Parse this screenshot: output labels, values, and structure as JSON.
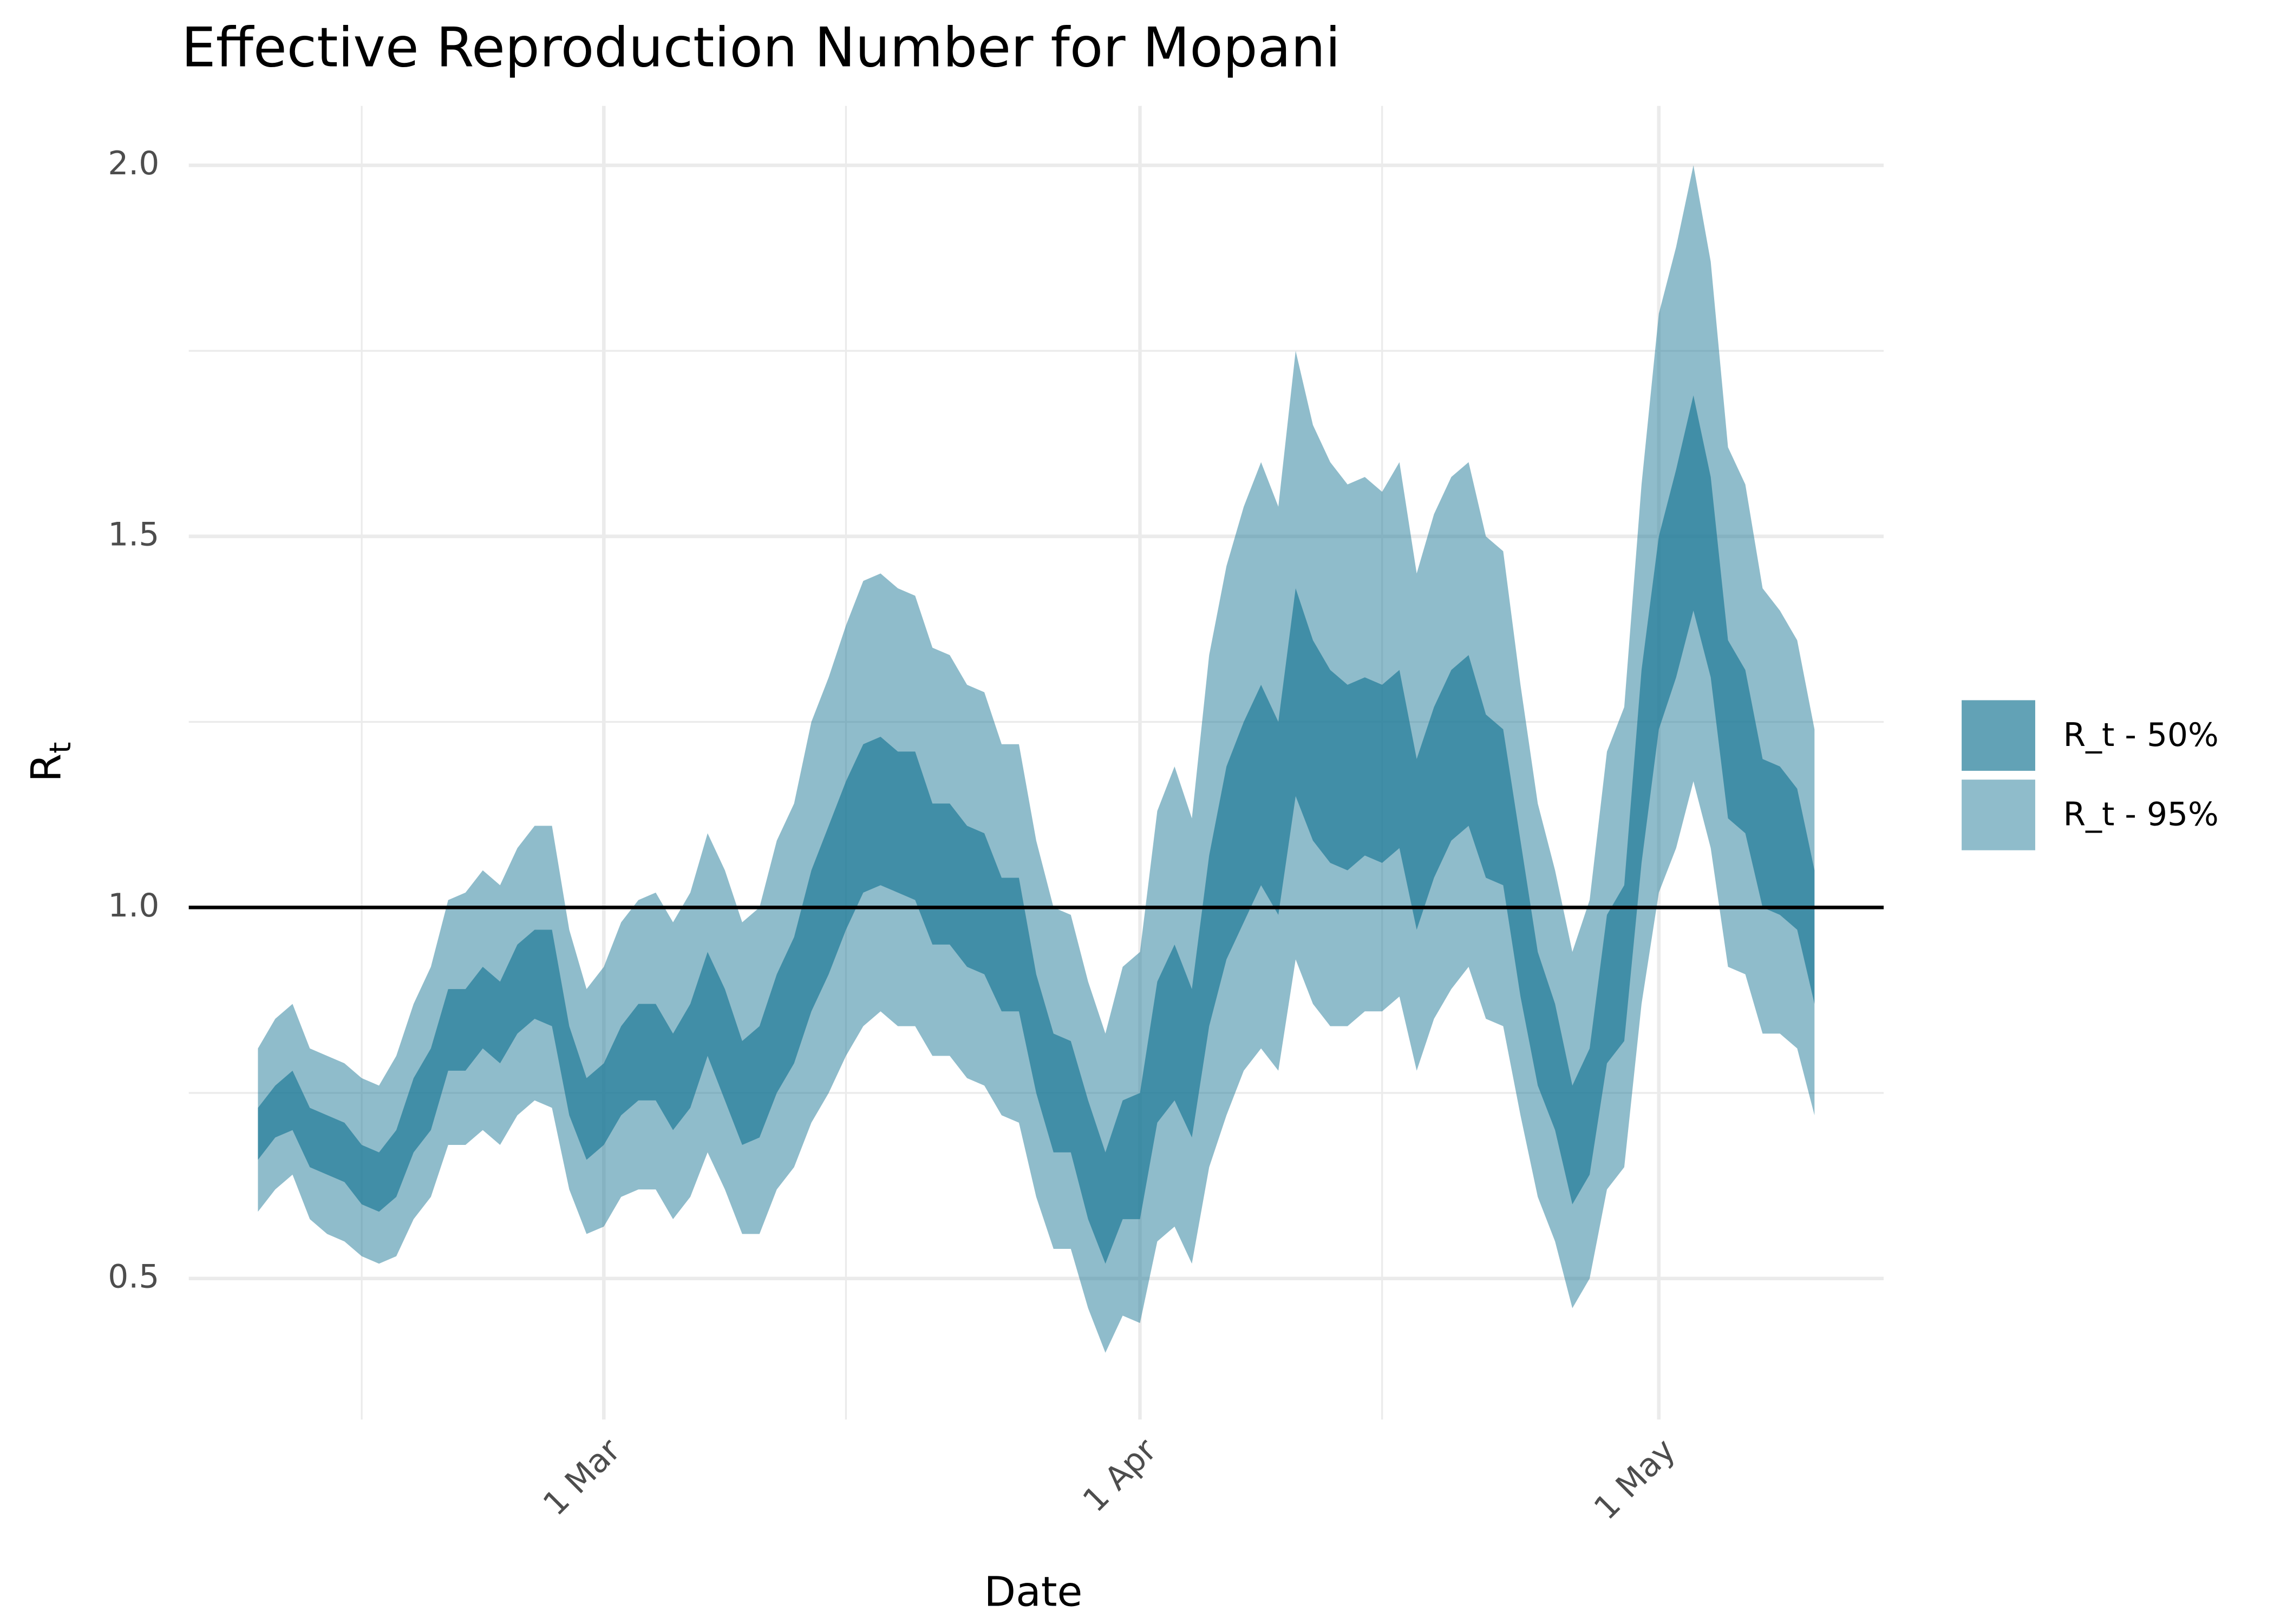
{
  "chart_data": {
    "type": "ribbon",
    "title": "Effective Reproduction Number for Mopani",
    "xlabel": "Date",
    "ylabel": "R",
    "ylabel_subscript": "t",
    "x": [
      "02-09",
      "02-10",
      "02-11",
      "02-12",
      "02-13",
      "02-14",
      "02-15",
      "02-16",
      "02-17",
      "02-18",
      "02-19",
      "02-20",
      "02-21",
      "02-22",
      "02-23",
      "02-24",
      "02-25",
      "02-26",
      "02-27",
      "02-28",
      "03-01",
      "03-02",
      "03-03",
      "03-04",
      "03-05",
      "03-06",
      "03-07",
      "03-08",
      "03-09",
      "03-10",
      "03-11",
      "03-12",
      "03-13",
      "03-14",
      "03-15",
      "03-16",
      "03-17",
      "03-18",
      "03-19",
      "03-20",
      "03-21",
      "03-22",
      "03-23",
      "03-24",
      "03-25",
      "03-26",
      "03-27",
      "03-28",
      "03-29",
      "03-30",
      "03-31",
      "04-01",
      "04-02",
      "04-03",
      "04-04",
      "04-05",
      "04-06",
      "04-07",
      "04-08",
      "04-09",
      "04-10",
      "04-11",
      "04-12",
      "04-13",
      "04-14",
      "04-15",
      "04-16",
      "04-17",
      "04-18",
      "04-19",
      "04-20",
      "04-21",
      "04-22",
      "04-23",
      "04-24",
      "04-25",
      "04-26",
      "04-27",
      "04-28",
      "04-29",
      "04-30",
      "05-01",
      "05-02",
      "05-03",
      "05-04",
      "05-05",
      "05-06",
      "05-07",
      "05-08",
      "05-09",
      "05-10"
    ],
    "series": [
      {
        "name": "R_t - 50%",
        "color": "#1f7a97",
        "opacity": 0.7,
        "lower": [
          0.66,
          0.69,
          0.7,
          0.65,
          0.64,
          0.63,
          0.6,
          0.59,
          0.61,
          0.67,
          0.7,
          0.78,
          0.78,
          0.81,
          0.79,
          0.83,
          0.85,
          0.84,
          0.72,
          0.66,
          0.68,
          0.72,
          0.74,
          0.74,
          0.7,
          0.73,
          0.8,
          0.74,
          0.68,
          0.69,
          0.75,
          0.79,
          0.86,
          0.91,
          0.97,
          1.02,
          1.03,
          1.02,
          1.01,
          0.95,
          0.95,
          0.92,
          0.91,
          0.86,
          0.86,
          0.75,
          0.67,
          0.67,
          0.58,
          0.52,
          0.58,
          0.58,
          0.71,
          0.74,
          0.69,
          0.84,
          0.93,
          0.98,
          1.03,
          0.99,
          1.15,
          1.09,
          1.06,
          1.05,
          1.07,
          1.06,
          1.08,
          0.97,
          1.04,
          1.09,
          1.11,
          1.04,
          1.03,
          0.88,
          0.76,
          0.7,
          0.6,
          0.64,
          0.79,
          0.82,
          1.06,
          1.24,
          1.31,
          1.4,
          1.31,
          1.12,
          1.1,
          1.0,
          0.99,
          0.97,
          0.87
        ],
        "upper": [
          0.73,
          0.76,
          0.78,
          0.73,
          0.72,
          0.71,
          0.68,
          0.67,
          0.7,
          0.77,
          0.81,
          0.89,
          0.89,
          0.92,
          0.9,
          0.95,
          0.97,
          0.97,
          0.84,
          0.77,
          0.79,
          0.84,
          0.87,
          0.87,
          0.83,
          0.87,
          0.94,
          0.89,
          0.82,
          0.84,
          0.91,
          0.96,
          1.05,
          1.11,
          1.17,
          1.22,
          1.23,
          1.21,
          1.21,
          1.14,
          1.14,
          1.11,
          1.1,
          1.04,
          1.04,
          0.91,
          0.83,
          0.82,
          0.74,
          0.67,
          0.74,
          0.75,
          0.9,
          0.95,
          0.89,
          1.07,
          1.19,
          1.25,
          1.3,
          1.25,
          1.43,
          1.36,
          1.32,
          1.3,
          1.31,
          1.3,
          1.32,
          1.2,
          1.27,
          1.32,
          1.34,
          1.26,
          1.24,
          1.09,
          0.94,
          0.87,
          0.76,
          0.81,
          0.99,
          1.03,
          1.32,
          1.5,
          1.59,
          1.69,
          1.58,
          1.36,
          1.32,
          1.2,
          1.19,
          1.16,
          1.05
        ]
      },
      {
        "name": "R_t - 95%",
        "color": "#1f7a97",
        "opacity": 0.5,
        "lower": [
          0.59,
          0.62,
          0.64,
          0.58,
          0.56,
          0.55,
          0.53,
          0.52,
          0.53,
          0.58,
          0.61,
          0.68,
          0.68,
          0.7,
          0.68,
          0.72,
          0.74,
          0.73,
          0.62,
          0.56,
          0.57,
          0.61,
          0.62,
          0.62,
          0.58,
          0.61,
          0.67,
          0.62,
          0.56,
          0.56,
          0.62,
          0.65,
          0.71,
          0.75,
          0.8,
          0.84,
          0.86,
          0.84,
          0.84,
          0.8,
          0.8,
          0.77,
          0.76,
          0.72,
          0.71,
          0.61,
          0.54,
          0.54,
          0.46,
          0.4,
          0.45,
          0.44,
          0.55,
          0.57,
          0.52,
          0.65,
          0.72,
          0.78,
          0.81,
          0.78,
          0.93,
          0.87,
          0.84,
          0.84,
          0.86,
          0.86,
          0.88,
          0.78,
          0.85,
          0.89,
          0.92,
          0.85,
          0.84,
          0.72,
          0.61,
          0.55,
          0.46,
          0.5,
          0.62,
          0.65,
          0.87,
          1.02,
          1.08,
          1.17,
          1.08,
          0.92,
          0.91,
          0.83,
          0.83,
          0.81,
          0.72
        ],
        "upper": [
          0.81,
          0.85,
          0.87,
          0.81,
          0.8,
          0.79,
          0.77,
          0.76,
          0.8,
          0.87,
          0.92,
          1.01,
          1.02,
          1.05,
          1.03,
          1.08,
          1.11,
          1.11,
          0.97,
          0.89,
          0.92,
          0.98,
          1.01,
          1.02,
          0.98,
          1.02,
          1.1,
          1.05,
          0.98,
          1.0,
          1.09,
          1.14,
          1.25,
          1.31,
          1.38,
          1.44,
          1.45,
          1.43,
          1.42,
          1.35,
          1.34,
          1.3,
          1.29,
          1.22,
          1.22,
          1.09,
          1.0,
          0.99,
          0.9,
          0.83,
          0.92,
          0.94,
          1.13,
          1.19,
          1.12,
          1.34,
          1.46,
          1.54,
          1.6,
          1.54,
          1.75,
          1.65,
          1.6,
          1.57,
          1.58,
          1.56,
          1.6,
          1.45,
          1.53,
          1.58,
          1.6,
          1.5,
          1.48,
          1.3,
          1.14,
          1.05,
          0.94,
          1.01,
          1.21,
          1.27,
          1.57,
          1.8,
          1.89,
          2.0,
          1.87,
          1.62,
          1.57,
          1.43,
          1.4,
          1.36,
          1.24
        ]
      }
    ],
    "draw_order": [
      1,
      0
    ],
    "xlim": [
      "02-05",
      "05-14"
    ],
    "xticks": [
      {
        "value": "03-01",
        "label": "1 Mar"
      },
      {
        "value": "04-01",
        "label": "1 Apr"
      },
      {
        "value": "05-01",
        "label": "1 May"
      }
    ],
    "xminorticks": [
      "02-15",
      "03-15",
      "04-15"
    ],
    "ylim": [
      0.31,
      2.08
    ],
    "yticks": [
      0.5,
      {
        "value": 1,
        "label": "1.0"
      },
      1.5,
      {
        "value": 2,
        "label": "2.0"
      }
    ],
    "yminorticks": [
      0.75,
      1.25,
      1.75
    ],
    "hline": 1,
    "grid": true,
    "legend_position": "right"
  }
}
